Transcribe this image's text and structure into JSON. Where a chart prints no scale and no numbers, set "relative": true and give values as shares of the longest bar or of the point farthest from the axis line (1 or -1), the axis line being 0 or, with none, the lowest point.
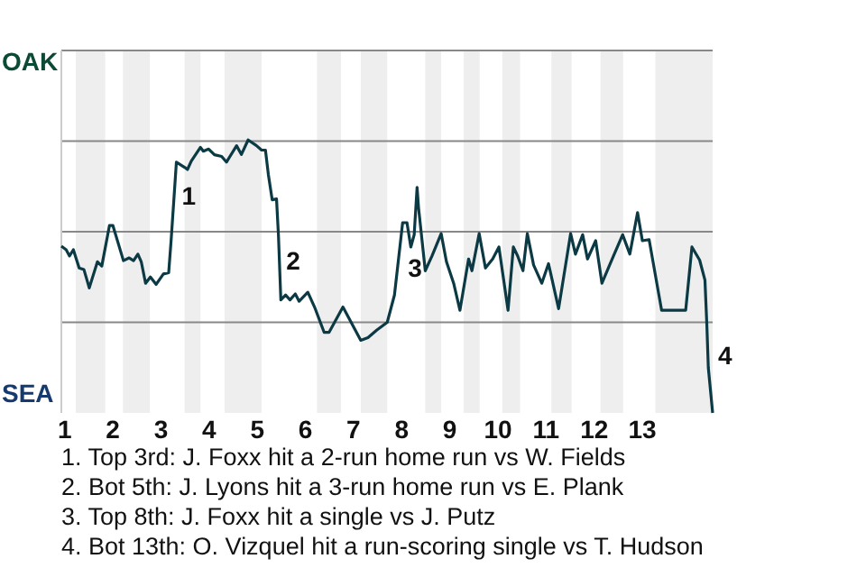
{
  "chart_data": {
    "type": "line",
    "relative": true,
    "x": [
      0.93,
      1.03,
      1.1,
      1.18,
      1.3,
      1.4,
      1.51,
      1.68,
      1.77,
      1.93,
      2,
      2.22,
      2.34,
      2.43,
      2.52,
      2.59,
      2.68,
      2.78,
      2.9,
      3.05,
      3.16,
      3.21,
      3.32,
      3.49,
      3.55,
      3.63,
      3.82,
      3.88,
      3.99,
      4.11,
      4.26,
      4.36,
      4.57,
      4.67,
      4.81,
      4.98,
      5.09,
      5.17,
      5.23,
      5.31,
      5.4,
      5.44,
      5.49,
      5.59,
      5.68,
      5.79,
      5.87,
      6.05,
      6.19,
      6.39,
      6.49,
      6.78,
      7.15,
      7.3,
      7.48,
      7.7,
      7.85,
      8.02,
      8.11,
      8.19,
      8.26,
      8.32,
      8.35,
      8.49,
      8.63,
      8.82,
      8.93,
      9.08,
      9.21,
      9.39,
      9.46,
      9.61,
      9.74,
      9.89,
      10.02,
      10.21,
      10.32,
      10.41,
      10.52,
      10.61,
      10.74,
      10.91,
      11.05,
      11.26,
      11.51,
      11.61,
      11.76,
      11.86,
      12.03,
      12.16,
      12.4,
      12.59,
      12.74,
      12.9,
      13,
      13.14,
      13.4,
      13.9,
      14.03,
      14.19,
      14.3,
      14.34,
      14.37,
      14.46
    ],
    "series": [
      {
        "color": "#0b3a44",
        "values": [
          0.611,
          0.598,
          0.575,
          0.598,
          0.531,
          0.525,
          0.458,
          0.554,
          0.538,
          0.687,
          0.687,
          0.558,
          0.568,
          0.558,
          0.582,
          0.554,
          0.475,
          0.498,
          0.471,
          0.509,
          0.514,
          0.631,
          0.919,
          0.9,
          0.892,
          0.923,
          0.973,
          0.959,
          0.967,
          0.946,
          0.94,
          0.919,
          0.979,
          0.947,
          1,
          0.98,
          0.963,
          0.963,
          0.874,
          0.781,
          0.784,
          0.651,
          0.414,
          0.432,
          0.414,
          0.436,
          0.409,
          0.442,
          0.388,
          0.295,
          0.295,
          0.388,
          0.266,
          0.276,
          0.303,
          0.332,
          0.432,
          0.697,
          0.697,
          0.608,
          0.653,
          0.826,
          0.753,
          0.521,
          0.575,
          0.657,
          0.554,
          0.475,
          0.376,
          0.564,
          0.521,
          0.657,
          0.531,
          0.564,
          0.608,
          0.376,
          0.608,
          0.575,
          0.521,
          0.657,
          0.542,
          0.475,
          0.547,
          0.382,
          0.657,
          0.582,
          0.653,
          0.564,
          0.631,
          0.475,
          0.575,
          0.653,
          0.582,
          0.734,
          0.631,
          0.635,
          0.376,
          0.376,
          0.608,
          0.56,
          0.487,
          0.321,
          0.166,
          0
        ]
      }
    ],
    "xlim": [
      0.93,
      14.46
    ],
    "xticks": [
      1,
      2,
      3,
      4,
      5,
      6,
      7,
      8,
      9,
      10,
      11,
      12,
      13
    ],
    "ref_lines": [
      {
        "axis": "y",
        "value": 0.332,
        "color": "#888888"
      },
      {
        "axis": "y",
        "value": 0.664,
        "color": "#888888"
      },
      {
        "axis": "y",
        "value": 0.996,
        "color": "#888888"
      },
      {
        "axis": "y",
        "value": 1.328,
        "color": "#888888"
      }
    ],
    "bands": [
      {
        "axis": "x",
        "from": 1.23,
        "to": 1.84,
        "color": "#eeeeee"
      },
      {
        "axis": "x",
        "from": 2.21,
        "to": 2.77,
        "color": "#eeeeee"
      },
      {
        "axis": "x",
        "from": 3.49,
        "to": 3.82,
        "color": "#eeeeee"
      },
      {
        "axis": "x",
        "from": 4.32,
        "to": 5.09,
        "color": "#eeeeee"
      },
      {
        "axis": "x",
        "from": 6.24,
        "to": 6.74,
        "color": "#eeeeee"
      },
      {
        "axis": "x",
        "from": 7.15,
        "to": 7.7,
        "color": "#eeeeee"
      },
      {
        "axis": "x",
        "from": 8.49,
        "to": 8.82,
        "color": "#eeeeee"
      },
      {
        "axis": "x",
        "from": 9.29,
        "to": 9.62,
        "color": "#eeeeee"
      },
      {
        "axis": "x",
        "from": 10.09,
        "to": 10.46,
        "color": "#eeeeee"
      },
      {
        "axis": "x",
        "from": 11.11,
        "to": 11.53,
        "color": "#eeeeee"
      },
      {
        "axis": "x",
        "from": 12.13,
        "to": 12.6,
        "color": "#eeeeee"
      },
      {
        "axis": "x",
        "from": 13.27,
        "to": 14.46,
        "color": "#eeeeee"
      }
    ],
    "annotations": [
      "OAK",
      "SEA",
      {
        "text": "1",
        "x": 3.32,
        "y": 0.797
      },
      {
        "text": "2",
        "x": 5.49,
        "y": 0.558
      },
      {
        "text": "3",
        "x": 8.02,
        "y": 0.531
      },
      {
        "text": "4",
        "x": 14.46,
        "y": 0.212
      },
      "1. Top 3rd: J. Foxx hit a 2-run home run vs W. Fields",
      "2. Bot 5th: J. Lyons hit a 3-run home run vs E. Plank",
      "3. Top 8th: J. Foxx hit a single vs J. Putz",
      "4. Bot 13th: O. Vizquel hit a run-scoring single vs T. Hudson"
    ],
    "marker": "none",
    "line_style": "solid"
  }
}
